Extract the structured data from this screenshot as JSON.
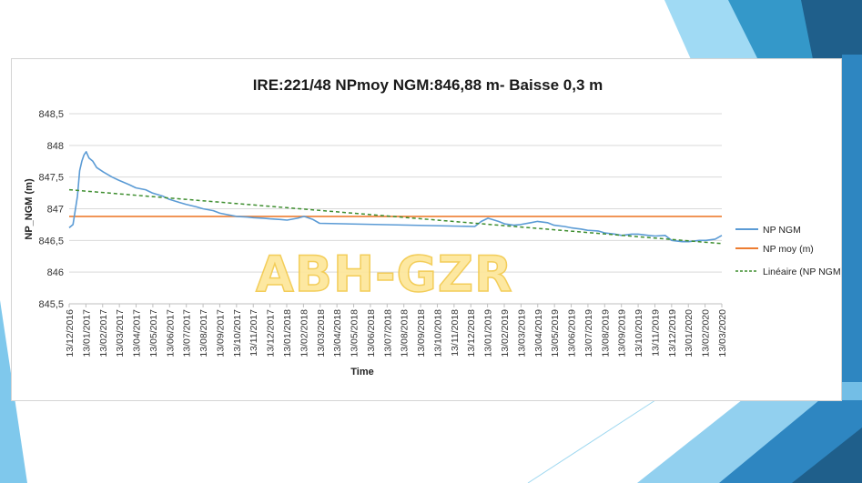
{
  "watermark": "ABH-GZR",
  "colors": {
    "np_ngm": "#5b9bd5",
    "np_moy": "#ed7d31",
    "lineaire": "#3e8e2f",
    "gridline": "#d9d9d9",
    "deco_dark": "#1f5f8b",
    "deco_mid": "#2e86c1",
    "deco_light": "#7fc8ec"
  },
  "chart_data": {
    "type": "line",
    "title": "IRE:221/48 NPmoy NGM:846,88 m- Baisse 0,3 m",
    "xlabel": "Time",
    "ylabel": "NP_NGM (m)",
    "ylim": [
      845.5,
      848.5
    ],
    "yticks": [
      "845,5",
      "846",
      "846,5",
      "847",
      "847,5",
      "848",
      "848,5"
    ],
    "ytick_values": [
      845.5,
      846,
      846.5,
      847,
      847.5,
      848,
      848.5
    ],
    "xlim": [
      "2016-12-13",
      "2020-03-13"
    ],
    "x_tick_labels": [
      "13/12/2016",
      "13/01/2017",
      "13/02/2017",
      "13/03/2017",
      "13/04/2017",
      "13/05/2017",
      "13/06/2017",
      "13/07/2017",
      "13/08/2017",
      "13/09/2017",
      "13/10/2017",
      "13/11/2017",
      "13/12/2017",
      "13/01/2018",
      "13/02/2018",
      "13/03/2018",
      "13/04/2018",
      "13/05/2018",
      "13/06/2018",
      "13/07/2018",
      "13/08/2018",
      "13/09/2018",
      "13/10/2018",
      "13/11/2018",
      "13/12/2018",
      "13/01/2019",
      "13/02/2019",
      "13/03/2019",
      "13/04/2019",
      "13/05/2019",
      "13/06/2019",
      "13/07/2019",
      "13/08/2019",
      "13/09/2019",
      "13/10/2019",
      "13/11/2019",
      "13/12/2019",
      "13/01/2020",
      "13/02/2020",
      "13/03/2020"
    ],
    "grid": true,
    "legend_position": "right",
    "series": [
      {
        "name": "NP NGM",
        "x": [
          "2016-12-13",
          "2016-12-20",
          "2016-12-28",
          "2017-01-01",
          "2017-01-05",
          "2017-01-09",
          "2017-01-13",
          "2017-01-18",
          "2017-01-25",
          "2017-02-01",
          "2017-02-13",
          "2017-03-01",
          "2017-03-13",
          "2017-04-01",
          "2017-04-13",
          "2017-05-01",
          "2017-05-13",
          "2017-06-01",
          "2017-06-13",
          "2017-07-01",
          "2017-07-13",
          "2017-08-01",
          "2017-08-13",
          "2017-09-01",
          "2017-09-13",
          "2017-10-01",
          "2017-10-13",
          "2017-11-01",
          "2017-11-13",
          "2017-12-01",
          "2017-12-13",
          "2018-01-01",
          "2018-01-13",
          "2018-02-01",
          "2018-02-13",
          "2018-03-01",
          "2018-03-13",
          "2018-12-20",
          "2019-01-01",
          "2019-01-13",
          "2019-02-01",
          "2019-02-13",
          "2019-03-01",
          "2019-03-13",
          "2019-04-01",
          "2019-04-13",
          "2019-05-01",
          "2019-05-13",
          "2019-06-01",
          "2019-06-13",
          "2019-07-01",
          "2019-07-13",
          "2019-08-01",
          "2019-08-13",
          "2019-09-01",
          "2019-09-13",
          "2019-10-01",
          "2019-10-13",
          "2019-11-01",
          "2019-11-13",
          "2019-12-01",
          "2019-12-13",
          "2020-01-01",
          "2020-01-13",
          "2020-02-01",
          "2020-02-13",
          "2020-03-01",
          "2020-03-13"
        ],
        "values": [
          846.7,
          846.75,
          847.2,
          847.6,
          847.75,
          847.85,
          847.9,
          847.8,
          847.75,
          847.65,
          847.58,
          847.5,
          847.45,
          847.38,
          847.33,
          847.3,
          847.25,
          847.2,
          847.15,
          847.1,
          847.07,
          847.03,
          847.0,
          846.97,
          846.93,
          846.9,
          846.88,
          846.87,
          846.86,
          846.85,
          846.84,
          846.83,
          846.82,
          846.85,
          846.88,
          846.83,
          846.77,
          846.72,
          846.8,
          846.85,
          846.8,
          846.76,
          846.74,
          846.75,
          846.78,
          846.8,
          846.78,
          846.74,
          846.72,
          846.7,
          846.68,
          846.66,
          846.65,
          846.62,
          846.6,
          846.58,
          846.6,
          846.6,
          846.58,
          846.57,
          846.58,
          846.5,
          846.48,
          846.48,
          846.5,
          846.5,
          846.52,
          846.58
        ]
      },
      {
        "name": "NP moy (m)",
        "x": [
          "2016-12-13",
          "2020-03-13"
        ],
        "values": [
          846.88,
          846.88
        ]
      },
      {
        "name": "Linéaire (NP NGM)",
        "x": [
          "2016-12-13",
          "2020-03-13"
        ],
        "values": [
          847.3,
          846.45
        ]
      }
    ]
  }
}
